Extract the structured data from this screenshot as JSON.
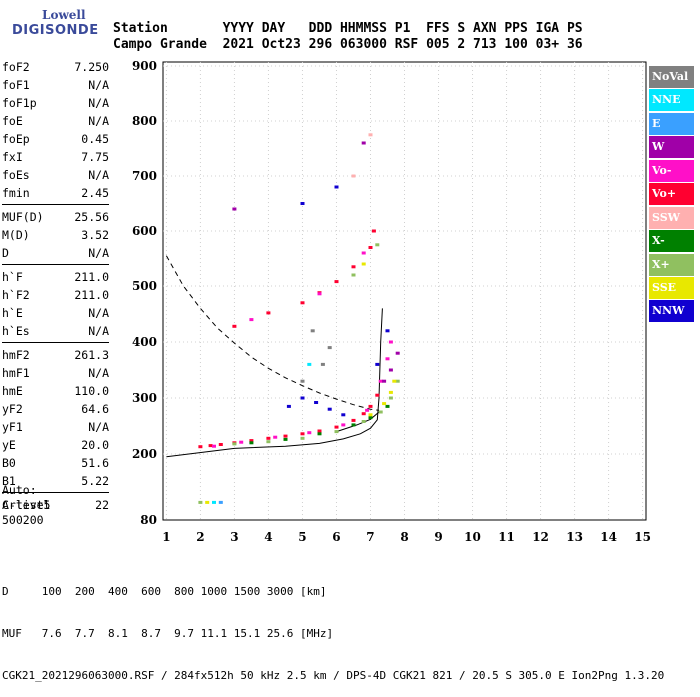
{
  "logo": {
    "line1": "Lowell",
    "line2": "DIGISONDE"
  },
  "header": {
    "row1": "Station       YYYY DAY   DDD HHMMSS P1  FFS S AXN PPS IGA PS",
    "row2": "Campo Grande  2021 Oct23 296 063000 RSF 005 2 713 100 03+ 36"
  },
  "params": [
    [
      {
        "name": "foF2",
        "value": "7.250"
      },
      {
        "name": "foF1",
        "value": "N/A"
      },
      {
        "name": "foF1p",
        "value": "N/A"
      },
      {
        "name": "foE",
        "value": "N/A"
      },
      {
        "name": "foEp",
        "value": "0.45"
      },
      {
        "name": "fxI",
        "value": "7.75"
      },
      {
        "name": "foEs",
        "value": "N/A"
      },
      {
        "name": "fmin",
        "value": "2.45"
      }
    ],
    [
      {
        "name": "MUF(D)",
        "value": "25.56"
      },
      {
        "name": "M(D)",
        "value": "3.52"
      },
      {
        "name": "D",
        "value": "N/A"
      }
    ],
    [
      {
        "name": "h`F",
        "value": "211.0"
      },
      {
        "name": "h`F2",
        "value": "211.0"
      },
      {
        "name": "h`E",
        "value": "N/A"
      },
      {
        "name": "h`Es",
        "value": "N/A"
      }
    ],
    [
      {
        "name": "hmF2",
        "value": "261.3"
      },
      {
        "name": "hmF1",
        "value": "N/A"
      },
      {
        "name": "hmE",
        "value": "110.0"
      },
      {
        "name": "yF2",
        "value": "64.6"
      },
      {
        "name": "yF1",
        "value": "N/A"
      },
      {
        "name": "yE",
        "value": "20.0"
      },
      {
        "name": "B0",
        "value": "51.6"
      },
      {
        "name": "B1",
        "value": "5.22"
      }
    ],
    [
      {
        "name": "C-level",
        "value": "22"
      }
    ]
  ],
  "auto": {
    "line1": "Auto:",
    "line2": "Artist5",
    "line3": "500200"
  },
  "legend": [
    {
      "label": "NoVal",
      "color": "#808080"
    },
    {
      "label": "NNE",
      "color": "#00e8ff"
    },
    {
      "label": "E",
      "color": "#3aa0ff"
    },
    {
      "label": "W",
      "color": "#a000a8"
    },
    {
      "label": "Vo-",
      "color": "#ff10c8"
    },
    {
      "label": "Vo+",
      "color": "#ff0030"
    },
    {
      "label": "SSW",
      "color": "#ffb0b0"
    },
    {
      "label": "X-",
      "color": "#008000"
    },
    {
      "label": "X+",
      "color": "#90c060"
    },
    {
      "label": "SSE",
      "color": "#e8e800"
    },
    {
      "label": "NNW",
      "color": "#1000d0"
    }
  ],
  "footer": {
    "line1": "D     100  200  400  600  800 1000 1500 3000 [km]",
    "line2": "MUF   7.6  7.7  8.1  8.7  9.7 11.1 15.1 25.6 [MHz]",
    "line3": "CGK21_2021296063000.RSF / 284fx512h 50 kHz 2.5 km / DPS-4D CGK21 821 / 20.5 S 305.0 E Ion2Png 1.3.20"
  },
  "chart_data": {
    "type": "scatter",
    "x_unit": "MHz",
    "y_unit": "km",
    "xlim": [
      0.9,
      15.1
    ],
    "ylim": [
      80,
      900
    ],
    "x_ticks": [
      "1",
      "2",
      "3",
      "4",
      "5",
      "6",
      "7",
      "8",
      "9",
      "10",
      "11",
      "12",
      "13",
      "14",
      "15"
    ],
    "y_ticks": [
      "80",
      "200",
      "300",
      "400",
      "500",
      "600",
      "700",
      "800",
      "900"
    ],
    "grid": true,
    "legend_placement": "right",
    "series": [
      {
        "name": "Vo+",
        "color": "#ff0030",
        "points": [
          [
            2.0,
            213
          ],
          [
            2.3,
            215
          ],
          [
            2.6,
            217
          ],
          [
            3.0,
            220
          ],
          [
            3.5,
            224
          ],
          [
            4.0,
            228
          ],
          [
            4.5,
            232
          ],
          [
            5.0,
            236
          ],
          [
            5.5,
            241
          ],
          [
            6.0,
            248
          ],
          [
            6.5,
            260
          ],
          [
            6.8,
            272
          ],
          [
            7.0,
            285
          ],
          [
            7.2,
            305
          ],
          [
            3.0,
            428
          ],
          [
            4.0,
            452
          ],
          [
            5.0,
            470
          ],
          [
            5.5,
            488
          ],
          [
            6.0,
            508
          ],
          [
            6.5,
            535
          ],
          [
            7.0,
            570
          ],
          [
            7.1,
            600
          ]
        ]
      },
      {
        "name": "Vo-",
        "color": "#ff10c8",
        "points": [
          [
            2.4,
            214
          ],
          [
            3.2,
            221
          ],
          [
            4.2,
            230
          ],
          [
            5.2,
            238
          ],
          [
            6.2,
            252
          ],
          [
            6.9,
            278
          ],
          [
            7.3,
            330
          ],
          [
            7.5,
            370
          ],
          [
            7.6,
            400
          ],
          [
            3.5,
            440
          ],
          [
            5.5,
            486
          ],
          [
            6.8,
            560
          ]
        ]
      },
      {
        "name": "X+",
        "color": "#90c060",
        "points": [
          [
            3.0,
            218
          ],
          [
            4.0,
            222
          ],
          [
            5.0,
            228
          ],
          [
            6.0,
            240
          ],
          [
            6.8,
            258
          ],
          [
            7.3,
            275
          ],
          [
            7.6,
            300
          ],
          [
            7.8,
            330
          ],
          [
            6.5,
            520
          ],
          [
            7.2,
            575
          ],
          [
            2.0,
            112
          ]
        ]
      },
      {
        "name": "X-",
        "color": "#008000",
        "points": [
          [
            3.5,
            220
          ],
          [
            4.5,
            226
          ],
          [
            5.5,
            236
          ],
          [
            6.5,
            252
          ],
          [
            7.0,
            265
          ],
          [
            7.5,
            285
          ]
        ]
      },
      {
        "name": "SSE",
        "color": "#e8e800",
        "points": [
          [
            7.0,
            270
          ],
          [
            7.4,
            290
          ],
          [
            7.6,
            310
          ],
          [
            7.7,
            330
          ],
          [
            6.8,
            540
          ],
          [
            2.2,
            112
          ]
        ]
      },
      {
        "name": "NNW",
        "color": "#1000d0",
        "points": [
          [
            4.6,
            285
          ],
          [
            5.0,
            300
          ],
          [
            5.4,
            292
          ],
          [
            5.8,
            280
          ],
          [
            6.2,
            270
          ],
          [
            7.2,
            360
          ],
          [
            7.5,
            420
          ],
          [
            6.0,
            680
          ],
          [
            5.0,
            650
          ]
        ]
      },
      {
        "name": "W",
        "color": "#a000a8",
        "points": [
          [
            7.6,
            350
          ],
          [
            7.8,
            380
          ],
          [
            7.4,
            330
          ],
          [
            6.8,
            760
          ],
          [
            3.0,
            640
          ]
        ]
      },
      {
        "name": "NNE",
        "color": "#00e8ff",
        "points": [
          [
            2.4,
            112
          ],
          [
            5.2,
            360
          ]
        ]
      },
      {
        "name": "E",
        "color": "#3aa0ff",
        "points": [
          [
            2.6,
            112
          ]
        ]
      },
      {
        "name": "NoVal",
        "color": "#808080",
        "points": [
          [
            5.3,
            420
          ],
          [
            5.6,
            360
          ],
          [
            5.0,
            330
          ],
          [
            5.8,
            390
          ]
        ]
      },
      {
        "name": "SSW",
        "color": "#ffb0b0",
        "points": [
          [
            6.5,
            700
          ],
          [
            7.0,
            775
          ]
        ]
      }
    ],
    "curves": [
      {
        "name": "profile",
        "style": "solid",
        "points": [
          [
            1.0,
            195
          ],
          [
            3.0,
            210
          ],
          [
            4.5,
            214
          ],
          [
            5.5,
            219
          ],
          [
            6.2,
            227
          ],
          [
            6.7,
            236
          ],
          [
            7.0,
            246
          ],
          [
            7.2,
            261
          ],
          [
            7.25,
            300
          ],
          [
            7.3,
            400
          ],
          [
            7.35,
            460
          ]
        ]
      },
      {
        "name": "profile-upper",
        "style": "solid",
        "points": [
          [
            6.0,
            240
          ],
          [
            6.6,
            252
          ],
          [
            7.0,
            262
          ],
          [
            7.25,
            275
          ]
        ]
      },
      {
        "name": "muf",
        "style": "dashed",
        "points": [
          [
            1.0,
            555
          ],
          [
            1.5,
            500
          ],
          [
            2.0,
            460
          ],
          [
            2.5,
            425
          ],
          [
            3.0,
            398
          ],
          [
            3.5,
            373
          ],
          [
            4.0,
            353
          ],
          [
            4.5,
            336
          ],
          [
            5.0,
            322
          ],
          [
            5.5,
            309
          ],
          [
            6.0,
            298
          ],
          [
            6.5,
            288
          ],
          [
            7.0,
            280
          ],
          [
            7.25,
            278
          ]
        ]
      }
    ]
  }
}
